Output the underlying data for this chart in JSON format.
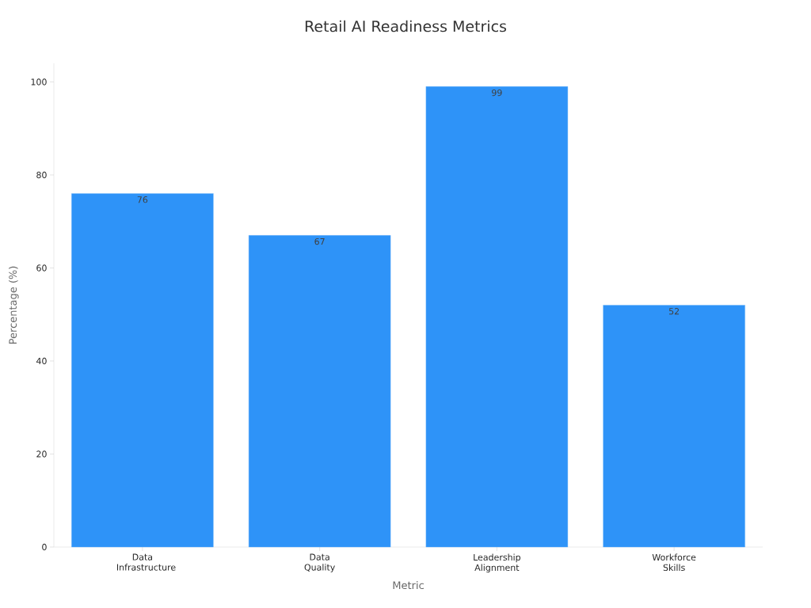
{
  "chart_data": {
    "type": "bar",
    "title": "Retail AI Readiness Metrics",
    "xlabel": "Metric",
    "ylabel": "Percentage (%)",
    "categories": [
      "Data Infrastructure",
      "Data Quality",
      "Leadership Alignment",
      "Workforce Skills"
    ],
    "values": [
      76,
      67,
      99,
      52
    ],
    "color": "#2e93f8",
    "ylim": [
      0,
      104
    ],
    "yticks": [
      0,
      20,
      40,
      60,
      80,
      100
    ],
    "grid": false,
    "data_labels": true
  }
}
